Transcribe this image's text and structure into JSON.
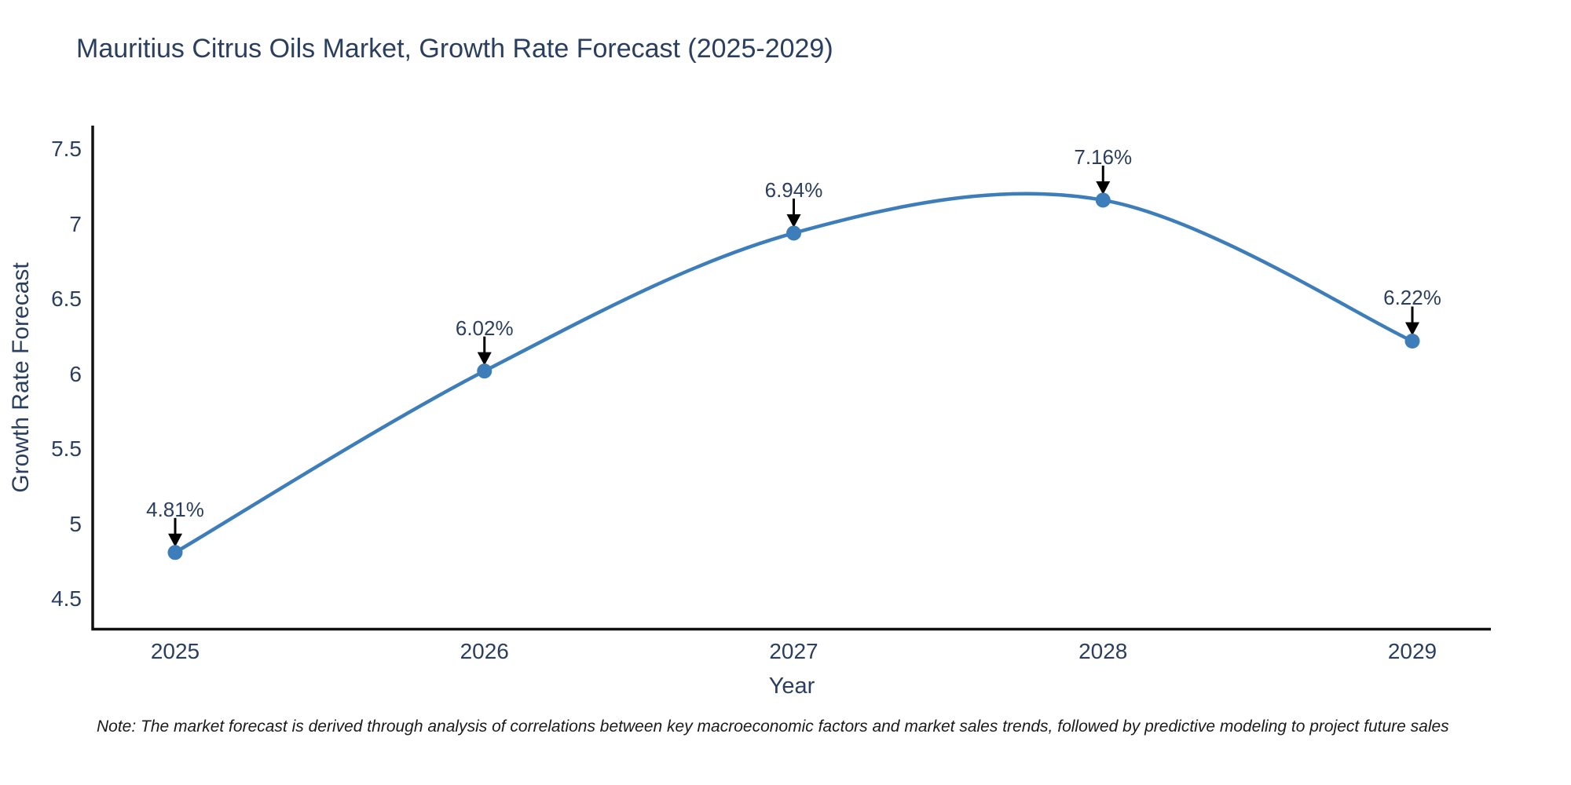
{
  "page": {
    "title": "Mauritius Citrus Oils Market, Growth Rate Forecast (2025-2029)"
  },
  "note": "Note: The market forecast is derived through analysis of correlations between key macroeconomic factors and market sales trends, followed by predictive modeling to project future sales",
  "chart_data": {
    "type": "line",
    "title": "Mauritius Citrus Oils Market, Growth Rate Forecast (2025-2029)",
    "xlabel": "Year",
    "ylabel": "Growth Rate Forecast",
    "categories": [
      "2025",
      "2026",
      "2027",
      "2028",
      "2029"
    ],
    "values": [
      4.81,
      6.02,
      6.94,
      7.16,
      6.22
    ],
    "point_labels": [
      "4.81%",
      "6.02%",
      "6.94%",
      "7.16%",
      "6.22%"
    ],
    "yticks": [
      7.5,
      7,
      6.5,
      6,
      5.5,
      5,
      4.5
    ],
    "ylim": [
      4.3,
      7.66
    ],
    "line_shape": "spline",
    "grid": false,
    "legend": "none",
    "annotations": "value labels with black down-arrows above each marker",
    "colors": {
      "line": "#3d7eba",
      "marker": "#3d7eba",
      "arrow": "#000000",
      "axis": "#111111",
      "text": "#2a3f5f"
    }
  }
}
